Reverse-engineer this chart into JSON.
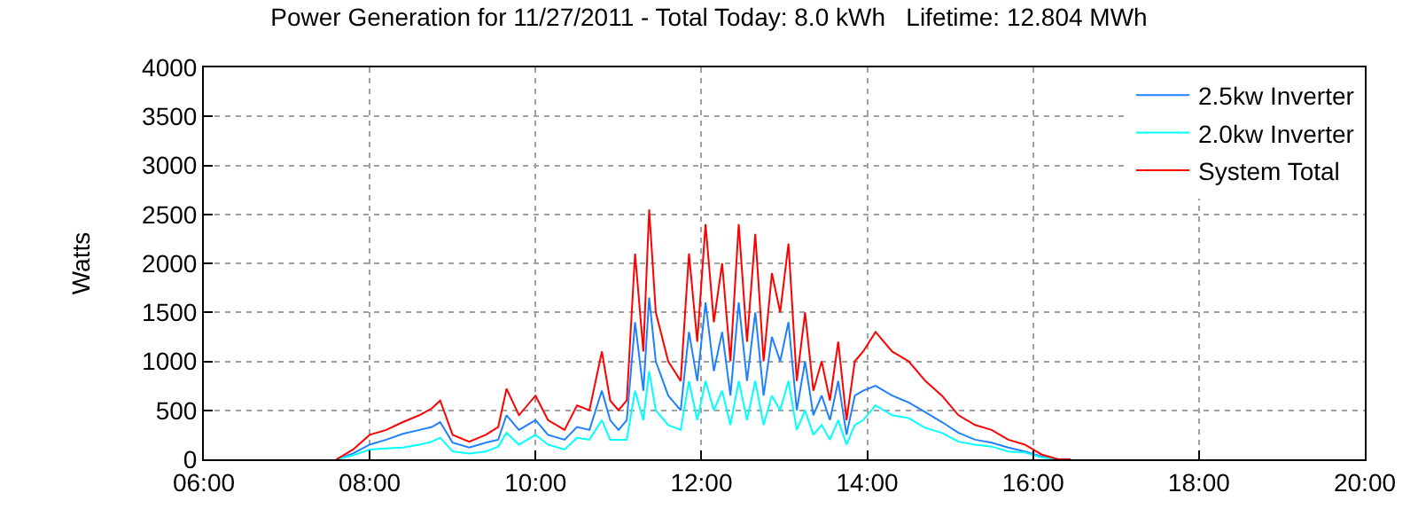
{
  "chart_data": {
    "type": "line",
    "title": "Power Generation for 11/27/2011 - Total Today: 8.0 kWh   Lifetime: 12.804 MWh",
    "ylabel": "Watts",
    "x": [
      7.6,
      7.8,
      8.0,
      8.2,
      8.4,
      8.6,
      8.75,
      8.85,
      9.0,
      9.2,
      9.4,
      9.55,
      9.65,
      9.8,
      10.0,
      10.15,
      10.35,
      10.5,
      10.65,
      10.8,
      10.9,
      11.0,
      11.1,
      11.2,
      11.3,
      11.37,
      11.45,
      11.6,
      11.75,
      11.85,
      11.95,
      12.05,
      12.15,
      12.25,
      12.35,
      12.45,
      12.55,
      12.65,
      12.75,
      12.85,
      12.95,
      13.05,
      13.15,
      13.25,
      13.35,
      13.45,
      13.55,
      13.65,
      13.75,
      13.85,
      13.95,
      14.1,
      14.3,
      14.5,
      14.7,
      14.9,
      15.1,
      15.3,
      15.5,
      15.7,
      15.9,
      16.1,
      16.3,
      16.45
    ],
    "series": [
      {
        "name": "2.5kw Inverter",
        "color": "#1e80ff",
        "values": [
          0,
          60,
          150,
          200,
          260,
          300,
          330,
          380,
          170,
          120,
          170,
          200,
          450,
          300,
          400,
          250,
          200,
          330,
          300,
          700,
          400,
          300,
          400,
          1400,
          700,
          1650,
          1000,
          650,
          500,
          1300,
          800,
          1600,
          900,
          1300,
          650,
          1600,
          800,
          1500,
          650,
          1250,
          1000,
          1400,
          500,
          1000,
          450,
          650,
          400,
          800,
          250,
          650,
          700,
          750,
          650,
          580,
          480,
          380,
          270,
          200,
          170,
          120,
          80,
          30,
          0,
          0
        ]
      },
      {
        "name": "2.0kw Inverter",
        "color": "#00ffff",
        "values": [
          0,
          40,
          100,
          110,
          120,
          150,
          180,
          220,
          80,
          60,
          80,
          130,
          270,
          150,
          250,
          150,
          100,
          220,
          200,
          400,
          200,
          200,
          200,
          700,
          400,
          900,
          500,
          350,
          300,
          800,
          400,
          800,
          500,
          700,
          350,
          800,
          400,
          800,
          350,
          650,
          500,
          800,
          300,
          500,
          250,
          350,
          200,
          400,
          150,
          350,
          400,
          550,
          450,
          420,
          320,
          270,
          180,
          150,
          130,
          80,
          70,
          20,
          0,
          0
        ]
      },
      {
        "name": "System Total",
        "color": "#ff0000",
        "values": [
          0,
          100,
          250,
          300,
          380,
          450,
          520,
          600,
          250,
          180,
          250,
          330,
          720,
          450,
          650,
          400,
          300,
          550,
          500,
          1100,
          600,
          500,
          600,
          2100,
          1100,
          2550,
          1500,
          1000,
          800,
          2100,
          1200,
          2400,
          1400,
          2000,
          1000,
          2400,
          1200,
          2300,
          1000,
          1900,
          1500,
          2200,
          800,
          1500,
          700,
          1000,
          600,
          1200,
          400,
          1000,
          1100,
          1300,
          1100,
          1000,
          800,
          650,
          450,
          350,
          300,
          200,
          150,
          50,
          0,
          0
        ]
      }
    ],
    "xlim": [
      6,
      20
    ],
    "xticks": [
      {
        "value": 6,
        "label": "06:00"
      },
      {
        "value": 8,
        "label": "08:00"
      },
      {
        "value": 10,
        "label": "10:00"
      },
      {
        "value": 12,
        "label": "12:00"
      },
      {
        "value": 14,
        "label": "14:00"
      },
      {
        "value": 16,
        "label": "16:00"
      },
      {
        "value": 18,
        "label": "18:00"
      },
      {
        "value": 20,
        "label": "20:00"
      }
    ],
    "ylim": [
      0,
      4000
    ],
    "yticks": [
      0,
      500,
      1000,
      1500,
      2000,
      2500,
      3000,
      3500,
      4000
    ],
    "grid": true,
    "legend": "top right",
    "marker": "none",
    "line_style": "solid"
  }
}
